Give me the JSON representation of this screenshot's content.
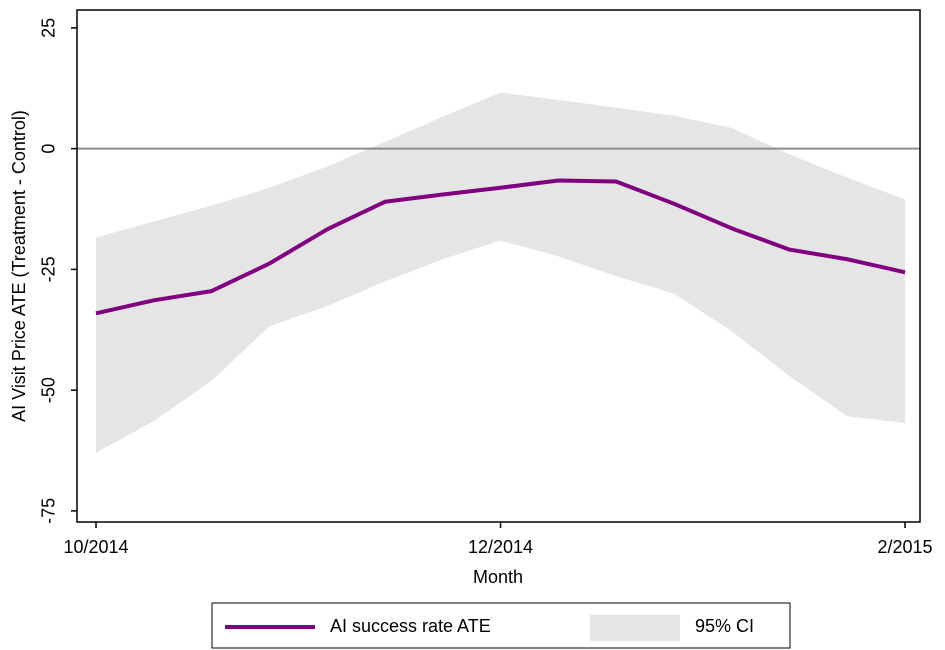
{
  "chart_data": {
    "type": "line",
    "x_label": "Month",
    "y_label": "AI Visit Price ATE (Treatment - Control)",
    "x": [
      0,
      0.2857,
      0.5714,
      0.8571,
      1.1429,
      1.4286,
      1.7143,
      2,
      2.2857,
      2.5714,
      2.8571,
      3.1429,
      3.4286,
      3.7143,
      4
    ],
    "series": [
      {
        "name": "AI success rate ATE",
        "color": "#800080",
        "values": [
          -34.1,
          -31.4,
          -29.5,
          -23.8,
          -16.7,
          -11.0,
          -9.5,
          -8.1,
          -6.6,
          -6.8,
          -11.4,
          -16.5,
          -20.9,
          -22.9,
          -25.6
        ]
      }
    ],
    "ci": {
      "name": "95% CI",
      "color": "#e5e5e5",
      "lower": [
        -63.0,
        -56.4,
        -48.1,
        -36.8,
        -32.6,
        -27.5,
        -22.9,
        -19.0,
        -22.3,
        -26.4,
        -30.0,
        -37.8,
        -47.1,
        -55.4,
        -56.8
      ],
      "upper": [
        -18.4,
        -15.1,
        -11.8,
        -8.1,
        -3.7,
        1.4,
        6.6,
        11.6,
        10.1,
        8.5,
        6.8,
        4.3,
        -1.2,
        -6.0,
        -10.5
      ]
    },
    "reference_line": 0,
    "xlim": [
      -0.094,
      4.074
    ],
    "xticks": [
      {
        "value": 0,
        "label": "10/2014"
      },
      {
        "value": 2,
        "label": "12/2014"
      },
      {
        "value": 4,
        "label": "2/2015"
      }
    ],
    "ylim": [
      -77.3,
      28.7
    ],
    "yticks": [
      25,
      0,
      -25,
      -50,
      -75
    ]
  }
}
